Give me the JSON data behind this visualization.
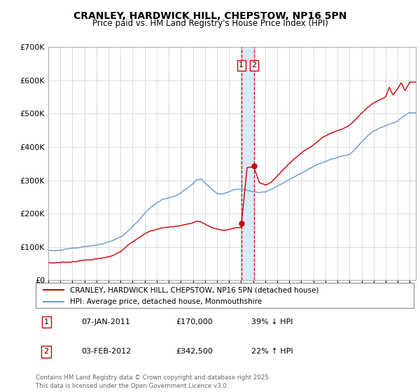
{
  "title": "CRANLEY, HARDWICK HILL, CHEPSTOW, NP16 5PN",
  "subtitle": "Price paid vs. HM Land Registry's House Price Index (HPI)",
  "legend_line1": "CRANLEY, HARDWICK HILL, CHEPSTOW, NP16 5PN (detached house)",
  "legend_line2": "HPI: Average price, detached house, Monmouthshire",
  "annotation1_label": "1",
  "annotation1_date": "07-JAN-2011",
  "annotation1_price": "£170,000",
  "annotation1_pct": "39% ↓ HPI",
  "annotation2_label": "2",
  "annotation2_date": "03-FEB-2012",
  "annotation2_price": "£342,500",
  "annotation2_pct": "22% ↑ HPI",
  "footer": "Contains HM Land Registry data © Crown copyright and database right 2025.\nThis data is licensed under the Open Government Licence v3.0.",
  "price_color": "#cc0000",
  "hpi_color": "#6699cc",
  "vband_color": "#dce8f5",
  "vline_color": "#cc0000",
  "annotation_box_color": "#cc0000",
  "ylim": [
    0,
    700000
  ],
  "yticks": [
    0,
    100000,
    200000,
    300000,
    400000,
    500000,
    600000,
    700000
  ],
  "xlim_start": 1995.0,
  "xlim_end": 2025.5,
  "marker1_x": 2011.02,
  "marker1_y": 170000,
  "marker2_x": 2012.08,
  "marker2_y": 342500,
  "vband_x1": 2011.02,
  "vband_x2": 2012.08,
  "hpi_anchors": [
    [
      1995.0,
      90000
    ],
    [
      1995.5,
      88000
    ],
    [
      1996.0,
      90000
    ],
    [
      1996.5,
      92000
    ],
    [
      1997.0,
      94000
    ],
    [
      1997.5,
      96000
    ],
    [
      1998.0,
      98000
    ],
    [
      1998.5,
      100000
    ],
    [
      1999.0,
      102000
    ],
    [
      1999.5,
      106000
    ],
    [
      2000.0,
      112000
    ],
    [
      2000.5,
      120000
    ],
    [
      2001.0,
      128000
    ],
    [
      2001.5,
      140000
    ],
    [
      2002.0,
      158000
    ],
    [
      2002.5,
      175000
    ],
    [
      2003.0,
      195000
    ],
    [
      2003.5,
      215000
    ],
    [
      2004.0,
      228000
    ],
    [
      2004.5,
      238000
    ],
    [
      2005.0,
      242000
    ],
    [
      2005.5,
      248000
    ],
    [
      2006.0,
      258000
    ],
    [
      2006.5,
      272000
    ],
    [
      2007.0,
      285000
    ],
    [
      2007.3,
      298000
    ],
    [
      2007.7,
      302000
    ],
    [
      2008.0,
      290000
    ],
    [
      2008.5,
      272000
    ],
    [
      2009.0,
      258000
    ],
    [
      2009.5,
      255000
    ],
    [
      2010.0,
      262000
    ],
    [
      2010.5,
      268000
    ],
    [
      2011.0,
      268000
    ],
    [
      2011.5,
      264000
    ],
    [
      2012.0,
      260000
    ],
    [
      2012.5,
      256000
    ],
    [
      2013.0,
      258000
    ],
    [
      2013.5,
      265000
    ],
    [
      2014.0,
      275000
    ],
    [
      2014.5,
      285000
    ],
    [
      2015.0,
      295000
    ],
    [
      2015.5,
      305000
    ],
    [
      2016.0,
      315000
    ],
    [
      2016.5,
      325000
    ],
    [
      2017.0,
      335000
    ],
    [
      2017.5,
      342000
    ],
    [
      2018.0,
      350000
    ],
    [
      2018.5,
      358000
    ],
    [
      2019.0,
      362000
    ],
    [
      2019.5,
      368000
    ],
    [
      2020.0,
      372000
    ],
    [
      2020.5,
      388000
    ],
    [
      2021.0,
      408000
    ],
    [
      2021.5,
      428000
    ],
    [
      2022.0,
      445000
    ],
    [
      2022.5,
      455000
    ],
    [
      2023.0,
      460000
    ],
    [
      2023.5,
      468000
    ],
    [
      2024.0,
      475000
    ],
    [
      2024.5,
      490000
    ],
    [
      2025.0,
      500000
    ],
    [
      2025.5,
      500000
    ]
  ],
  "price_anchors": [
    [
      1995.0,
      52000
    ],
    [
      1995.5,
      52000
    ],
    [
      1996.0,
      54000
    ],
    [
      1996.5,
      55000
    ],
    [
      1997.0,
      57000
    ],
    [
      1997.5,
      59000
    ],
    [
      1998.0,
      62000
    ],
    [
      1998.5,
      64000
    ],
    [
      1999.0,
      66000
    ],
    [
      1999.5,
      68000
    ],
    [
      2000.0,
      70000
    ],
    [
      2000.5,
      76000
    ],
    [
      2001.0,
      85000
    ],
    [
      2001.5,
      100000
    ],
    [
      2002.0,
      115000
    ],
    [
      2002.5,
      130000
    ],
    [
      2003.0,
      142000
    ],
    [
      2003.5,
      150000
    ],
    [
      2004.0,
      155000
    ],
    [
      2004.5,
      160000
    ],
    [
      2005.0,
      162000
    ],
    [
      2005.5,
      165000
    ],
    [
      2006.0,
      168000
    ],
    [
      2006.5,
      172000
    ],
    [
      2007.0,
      175000
    ],
    [
      2007.3,
      180000
    ],
    [
      2007.7,
      178000
    ],
    [
      2008.0,
      172000
    ],
    [
      2008.5,
      162000
    ],
    [
      2009.0,
      155000
    ],
    [
      2009.5,
      154000
    ],
    [
      2010.0,
      156000
    ],
    [
      2010.5,
      160000
    ],
    [
      2011.0,
      162000
    ],
    [
      2011.02,
      170000
    ],
    [
      2011.5,
      342000
    ],
    [
      2012.0,
      344000
    ],
    [
      2012.08,
      342500
    ],
    [
      2012.5,
      300000
    ],
    [
      2013.0,
      290000
    ],
    [
      2013.5,
      300000
    ],
    [
      2014.0,
      320000
    ],
    [
      2014.5,
      340000
    ],
    [
      2015.0,
      360000
    ],
    [
      2015.5,
      375000
    ],
    [
      2016.0,
      390000
    ],
    [
      2016.5,
      405000
    ],
    [
      2017.0,
      418000
    ],
    [
      2017.5,
      432000
    ],
    [
      2018.0,
      445000
    ],
    [
      2018.5,
      455000
    ],
    [
      2019.0,
      462000
    ],
    [
      2019.5,
      468000
    ],
    [
      2020.0,
      478000
    ],
    [
      2020.5,
      495000
    ],
    [
      2021.0,
      515000
    ],
    [
      2021.5,
      535000
    ],
    [
      2022.0,
      548000
    ],
    [
      2022.5,
      558000
    ],
    [
      2023.0,
      568000
    ],
    [
      2023.3,
      598000
    ],
    [
      2023.6,
      575000
    ],
    [
      2024.0,
      592000
    ],
    [
      2024.3,
      610000
    ],
    [
      2024.6,
      585000
    ],
    [
      2025.0,
      608000
    ],
    [
      2025.5,
      608000
    ]
  ]
}
